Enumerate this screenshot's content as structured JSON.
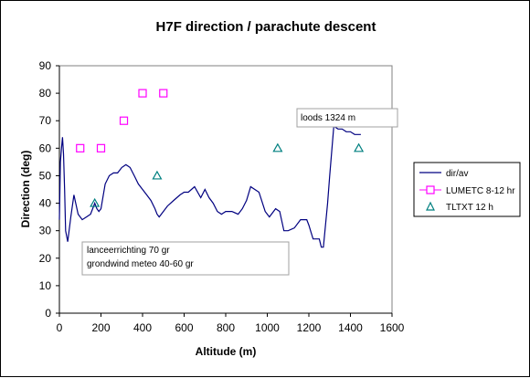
{
  "chart_data": {
    "type": "line",
    "title": "H7F direction / parachute descent",
    "xlabel": "Altitude (m)",
    "ylabel": "Direction (deg)",
    "xlim": [
      0,
      1600
    ],
    "ylim": [
      0,
      90
    ],
    "xticks": [
      0,
      200,
      400,
      600,
      800,
      1000,
      1200,
      1400,
      1600
    ],
    "yticks": [
      0,
      10,
      20,
      30,
      40,
      50,
      60,
      70,
      80,
      90
    ],
    "grid": false,
    "legend_position": "right",
    "series": [
      {
        "name": "dir/av",
        "type": "line",
        "color": "#000080",
        "x": [
          0,
          5,
          10,
          15,
          20,
          25,
          30,
          40,
          55,
          70,
          90,
          110,
          130,
          150,
          170,
          180,
          190,
          200,
          220,
          240,
          260,
          280,
          300,
          320,
          340,
          360,
          380,
          400,
          420,
          440,
          460,
          470,
          480,
          490,
          520,
          550,
          580,
          600,
          620,
          650,
          680,
          700,
          720,
          740,
          760,
          780,
          800,
          830,
          860,
          880,
          900,
          920,
          960,
          990,
          1010,
          1040,
          1060,
          1080,
          1100,
          1130,
          1160,
          1190,
          1200,
          1220,
          1240,
          1250,
          1260,
          1270,
          1290,
          1300,
          1320,
          1340,
          1360,
          1380,
          1400,
          1420,
          1440,
          1450
        ],
        "y": [
          34,
          55,
          60,
          64,
          58,
          45,
          30,
          26,
          35,
          43,
          36,
          34,
          35,
          36,
          40,
          38,
          37,
          38,
          47,
          50,
          51,
          51,
          53,
          54,
          53,
          50,
          47,
          45,
          43,
          41,
          38,
          36,
          35,
          36,
          39,
          41,
          43,
          44,
          44,
          46,
          42,
          45,
          42,
          40,
          37,
          36,
          37,
          37,
          36,
          38,
          41,
          46,
          44,
          37,
          35,
          38,
          37,
          30,
          30,
          31,
          34,
          34,
          32,
          27,
          27,
          27,
          24,
          24,
          40,
          50,
          68,
          67,
          67,
          66,
          66,
          65,
          65,
          65
        ]
      },
      {
        "name": "LUMETC 8-12 hr",
        "type": "scatter",
        "marker": "square",
        "color": "#ff00ff",
        "x": [
          100,
          200,
          310,
          400,
          500
        ],
        "y": [
          60,
          60,
          70,
          80,
          80
        ]
      },
      {
        "name": "TLTXT 12 h",
        "type": "scatter",
        "marker": "triangle",
        "color": "#008080",
        "x": [
          170,
          470,
          1050,
          1440
        ],
        "y": [
          40,
          50,
          60,
          60
        ]
      }
    ],
    "annotations": {
      "box1": {
        "lines": [
          "loods 1324 m"
        ]
      },
      "box2": {
        "lines": [
          "lanceerrichting 70 gr",
          "grondwind meteo 40-60 gr"
        ]
      }
    }
  }
}
